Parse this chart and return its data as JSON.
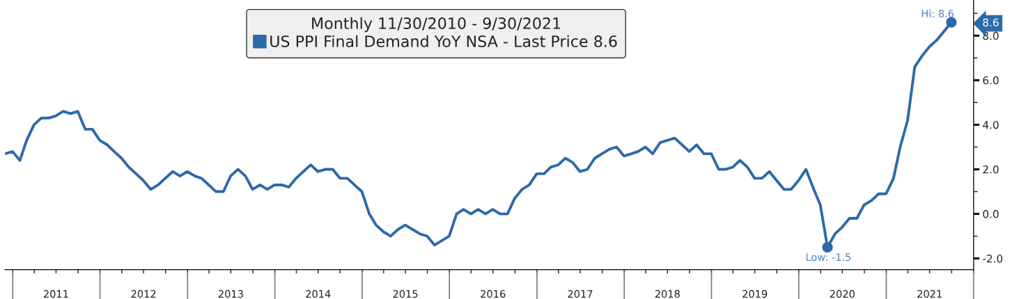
{
  "chart_data": {
    "type": "line",
    "legend_title": "Monthly 11/30/2010 - 9/30/2021",
    "legend": "top",
    "x": [
      "2010-11-30",
      "2010-12-31",
      "2011-01-31",
      "2011-02-28",
      "2011-03-31",
      "2011-04-30",
      "2011-05-31",
      "2011-06-30",
      "2011-07-31",
      "2011-08-31",
      "2011-09-30",
      "2011-10-31",
      "2011-11-30",
      "2011-12-31",
      "2012-01-31",
      "2012-02-29",
      "2012-03-31",
      "2012-04-30",
      "2012-05-31",
      "2012-06-30",
      "2012-07-31",
      "2012-08-31",
      "2012-09-30",
      "2012-10-31",
      "2012-11-30",
      "2012-12-31",
      "2013-01-31",
      "2013-02-28",
      "2013-03-31",
      "2013-04-30",
      "2013-05-31",
      "2013-06-30",
      "2013-07-31",
      "2013-08-31",
      "2013-09-30",
      "2013-10-31",
      "2013-11-30",
      "2013-12-31",
      "2014-01-31",
      "2014-02-28",
      "2014-03-31",
      "2014-04-30",
      "2014-05-31",
      "2014-06-30",
      "2014-07-31",
      "2014-08-31",
      "2014-09-30",
      "2014-10-31",
      "2014-11-30",
      "2014-12-31",
      "2015-01-31",
      "2015-02-28",
      "2015-03-31",
      "2015-04-30",
      "2015-05-31",
      "2015-06-30",
      "2015-07-31",
      "2015-08-31",
      "2015-09-30",
      "2015-10-31",
      "2015-11-30",
      "2015-12-31",
      "2016-01-31",
      "2016-02-29",
      "2016-03-31",
      "2016-04-30",
      "2016-05-31",
      "2016-06-30",
      "2016-07-31",
      "2016-08-31",
      "2016-09-30",
      "2016-10-31",
      "2016-11-30",
      "2016-12-31",
      "2017-01-31",
      "2017-02-28",
      "2017-03-31",
      "2017-04-30",
      "2017-05-31",
      "2017-06-30",
      "2017-07-31",
      "2017-08-31",
      "2017-09-30",
      "2017-10-31",
      "2017-11-30",
      "2017-12-31",
      "2018-01-31",
      "2018-02-28",
      "2018-03-31",
      "2018-04-30",
      "2018-05-31",
      "2018-06-30",
      "2018-07-31",
      "2018-08-31",
      "2018-09-30",
      "2018-10-31",
      "2018-11-30",
      "2018-12-31",
      "2019-01-31",
      "2019-02-28",
      "2019-03-31",
      "2019-04-30",
      "2019-05-31",
      "2019-06-30",
      "2019-07-31",
      "2019-08-31",
      "2019-09-30",
      "2019-10-31",
      "2019-11-30",
      "2019-12-31",
      "2020-01-31",
      "2020-02-29",
      "2020-03-31",
      "2020-04-30",
      "2020-05-31",
      "2020-06-30",
      "2020-07-31",
      "2020-08-31",
      "2020-09-30",
      "2020-10-31",
      "2020-11-30",
      "2020-12-31",
      "2021-01-31",
      "2021-02-28",
      "2021-03-31",
      "2021-04-30",
      "2021-05-31",
      "2021-06-30",
      "2021-07-31",
      "2021-08-31",
      "2021-09-30"
    ],
    "series": [
      {
        "name": "US PPI Final Demand YoY NSA - Last Price 8.6",
        "color": "#2d6aa8",
        "values": [
          2.7,
          2.8,
          2.4,
          3.3,
          4.0,
          4.3,
          4.3,
          4.4,
          4.6,
          4.5,
          4.6,
          3.8,
          3.8,
          3.3,
          3.1,
          2.8,
          2.5,
          2.1,
          1.8,
          1.5,
          1.1,
          1.3,
          1.6,
          1.9,
          1.7,
          1.9,
          1.7,
          1.6,
          1.3,
          1.0,
          1.0,
          1.7,
          2.0,
          1.7,
          1.1,
          1.3,
          1.1,
          1.3,
          1.3,
          1.2,
          1.6,
          1.9,
          2.2,
          1.9,
          2.0,
          2.0,
          1.6,
          1.6,
          1.3,
          1.0,
          0.0,
          -0.5,
          -0.8,
          -1.0,
          -0.7,
          -0.5,
          -0.7,
          -0.9,
          -1.0,
          -1.4,
          -1.2,
          -1.0,
          0.0,
          0.2,
          0.0,
          0.2,
          0.0,
          0.2,
          0.0,
          0.0,
          0.7,
          1.1,
          1.3,
          1.8,
          1.8,
          2.1,
          2.2,
          2.5,
          2.3,
          1.9,
          2.0,
          2.5,
          2.7,
          2.9,
          3.0,
          2.6,
          2.7,
          2.8,
          3.0,
          2.7,
          3.2,
          3.3,
          3.4,
          3.1,
          2.8,
          3.1,
          2.7,
          2.7,
          2.0,
          2.0,
          2.1,
          2.4,
          2.1,
          1.6,
          1.6,
          1.9,
          1.5,
          1.1,
          1.1,
          1.5,
          2.0,
          1.2,
          0.4,
          -1.5,
          -0.9,
          -0.6,
          -0.2,
          -0.2,
          0.4,
          0.6,
          0.9,
          0.9,
          1.6,
          3.0,
          4.2,
          6.6,
          7.1,
          7.5,
          7.8,
          8.2,
          8.6
        ]
      }
    ],
    "xlim": [
      "2010-11-30",
      "2022-01-01"
    ],
    "ylim": [
      -2.5,
      9.6
    ],
    "xticks": [
      {
        "value": "2011-01-01",
        "label": null
      },
      {
        "value": "2011-04-01",
        "label": null
      },
      {
        "value": "2011-07-01",
        "label": "2011"
      },
      {
        "value": "2011-10-01",
        "label": null
      },
      {
        "value": "2012-01-01",
        "label": null
      },
      {
        "value": "2012-04-01",
        "label": null
      },
      {
        "value": "2012-07-01",
        "label": "2012"
      },
      {
        "value": "2012-10-01",
        "label": null
      },
      {
        "value": "2013-01-01",
        "label": null
      },
      {
        "value": "2013-04-01",
        "label": null
      },
      {
        "value": "2013-07-01",
        "label": "2013"
      },
      {
        "value": "2013-10-01",
        "label": null
      },
      {
        "value": "2014-01-01",
        "label": null
      },
      {
        "value": "2014-04-01",
        "label": null
      },
      {
        "value": "2014-07-01",
        "label": "2014"
      },
      {
        "value": "2014-10-01",
        "label": null
      },
      {
        "value": "2015-01-01",
        "label": null
      },
      {
        "value": "2015-04-01",
        "label": null
      },
      {
        "value": "2015-07-01",
        "label": "2015"
      },
      {
        "value": "2015-10-01",
        "label": null
      },
      {
        "value": "2016-01-01",
        "label": null
      },
      {
        "value": "2016-04-01",
        "label": null
      },
      {
        "value": "2016-07-01",
        "label": "2016"
      },
      {
        "value": "2016-10-01",
        "label": null
      },
      {
        "value": "2017-01-01",
        "label": null
      },
      {
        "value": "2017-04-01",
        "label": null
      },
      {
        "value": "2017-07-01",
        "label": "2017"
      },
      {
        "value": "2017-10-01",
        "label": null
      },
      {
        "value": "2018-01-01",
        "label": null
      },
      {
        "value": "2018-04-01",
        "label": null
      },
      {
        "value": "2018-07-01",
        "label": "2018"
      },
      {
        "value": "2018-10-01",
        "label": null
      },
      {
        "value": "2019-01-01",
        "label": null
      },
      {
        "value": "2019-04-01",
        "label": null
      },
      {
        "value": "2019-07-01",
        "label": "2019"
      },
      {
        "value": "2019-10-01",
        "label": null
      },
      {
        "value": "2020-01-01",
        "label": null
      },
      {
        "value": "2020-04-01",
        "label": null
      },
      {
        "value": "2020-07-01",
        "label": "2020"
      },
      {
        "value": "2020-10-01",
        "label": null
      },
      {
        "value": "2021-01-01",
        "label": null
      },
      {
        "value": "2021-04-01",
        "label": null
      },
      {
        "value": "2021-07-01",
        "label": "2021"
      },
      {
        "value": "2021-10-01",
        "label": null
      },
      {
        "value": "2022-01-01",
        "label": null
      }
    ],
    "yticks": [
      {
        "value": -2,
        "label": "-2.0"
      },
      {
        "value": -1,
        "label": null
      },
      {
        "value": 0,
        "label": "0.0"
      },
      {
        "value": 1,
        "label": null
      },
      {
        "value": 2,
        "label": "2.0"
      },
      {
        "value": 3,
        "label": null
      },
      {
        "value": 4,
        "label": "4.0"
      },
      {
        "value": 5,
        "label": null
      },
      {
        "value": 6,
        "label": "6.0"
      },
      {
        "value": 7,
        "label": null
      },
      {
        "value": 8,
        "label": "8.0"
      },
      {
        "value": 8.6,
        "label": "8.6"
      },
      {
        "value": 9,
        "label": null
      }
    ],
    "annotations": [
      {
        "text": "Hi: 8.6",
        "x": "2021-09-30",
        "y": 8.6
      },
      {
        "text": "Low: -1.5",
        "x": "2020-04-30",
        "y": -1.5
      }
    ]
  }
}
